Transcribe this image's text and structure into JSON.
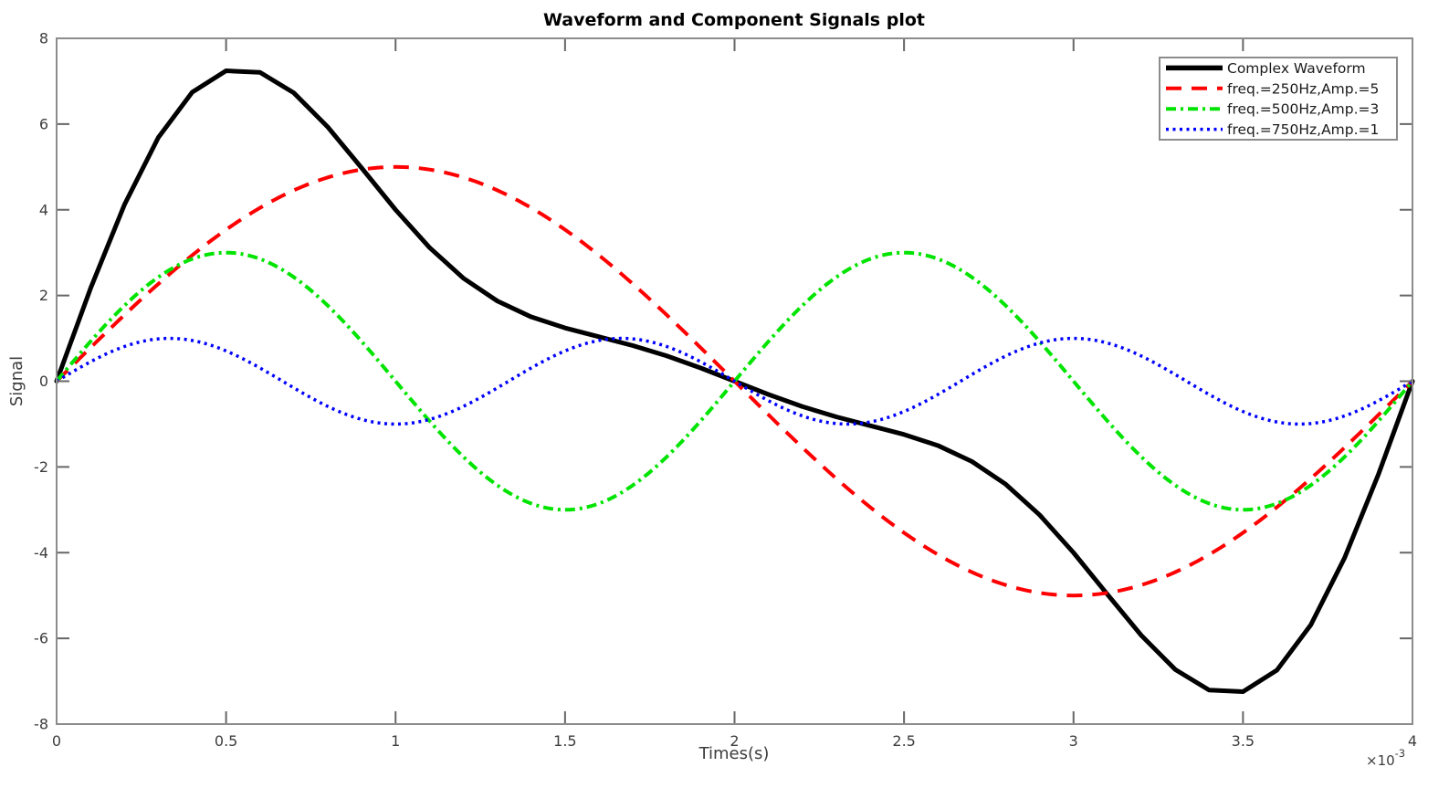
{
  "figure": {
    "background_color": "#ffffff",
    "axis_box_color": "#8c8c8c",
    "tick_color": "#666666",
    "tick_label_color": "#3d3d3d"
  },
  "chart_data": {
    "type": "line",
    "title": "Waveform and Component Signals plot",
    "xlabel": "Times(s)",
    "ylabel": "Signal",
    "x_scale_label": {
      "base": "×10",
      "exponent": "-3"
    },
    "xlim_ms": [
      0,
      4
    ],
    "ylim": [
      -8,
      8
    ],
    "x_ticks_ms": [
      0,
      0.5,
      1,
      1.5,
      2,
      2.5,
      3,
      3.5,
      4
    ],
    "x_tick_labels": [
      "0",
      "0.5",
      "1",
      "1.5",
      "2",
      "2.5",
      "3",
      "3.5",
      "4"
    ],
    "y_ticks": [
      -8,
      -6,
      -4,
      -2,
      0,
      2,
      4,
      6,
      8
    ],
    "y_tick_labels": [
      "-8",
      "-6",
      "-4",
      "-2",
      "0",
      "2",
      "4",
      "6",
      "8"
    ],
    "grid": false,
    "legend": {
      "position": "top-right"
    },
    "series": [
      {
        "name": "Complex Waveform",
        "color": "#000000",
        "line_style": "solid",
        "line_width": 5,
        "t_ms": [
          0,
          0.1,
          0.2,
          0.3,
          0.4,
          0.5,
          0.6,
          0.7,
          0.8,
          0.9,
          1.0,
          1.1,
          1.2,
          1.3,
          1.4,
          1.5,
          1.6,
          1.7,
          1.8,
          1.9,
          2.0,
          2.1,
          2.2,
          2.3,
          2.4,
          2.5,
          2.6,
          2.7,
          2.8,
          2.9,
          3.0,
          3.1,
          3.2,
          3.3,
          3.4,
          3.5,
          3.6,
          3.7,
          3.8,
          3.9,
          4.0
        ],
        "values": [
          0,
          2.163,
          4.117,
          5.685,
          6.743,
          7.243,
          7.207,
          6.726,
          5.931,
          4.974,
          4.0,
          3.12,
          2.404,
          1.872,
          1.501,
          1.243,
          1.037,
          0.831,
          0.591,
          0.309,
          0,
          -0.309,
          -0.591,
          -0.831,
          -1.037,
          -1.243,
          -1.501,
          -1.872,
          -2.404,
          -3.12,
          -4.0,
          -4.974,
          -5.931,
          -6.726,
          -7.207,
          -7.243,
          -6.743,
          -5.685,
          -4.117,
          -2.163,
          0
        ]
      },
      {
        "name": "freq.=250Hz,Amp.=5",
        "color": "#ff0000",
        "line_style": "dashed",
        "line_width": 4,
        "freq_hz": 250,
        "amplitude": 5
      },
      {
        "name": "freq.=500Hz,Amp.=3",
        "color": "#00e400",
        "line_style": "dashdot",
        "line_width": 4,
        "freq_hz": 500,
        "amplitude": 3
      },
      {
        "name": "freq.=750Hz,Amp.=1",
        "color": "#0000ff",
        "line_style": "dotted",
        "line_width": 3.5,
        "freq_hz": 750,
        "amplitude": 1
      }
    ]
  }
}
